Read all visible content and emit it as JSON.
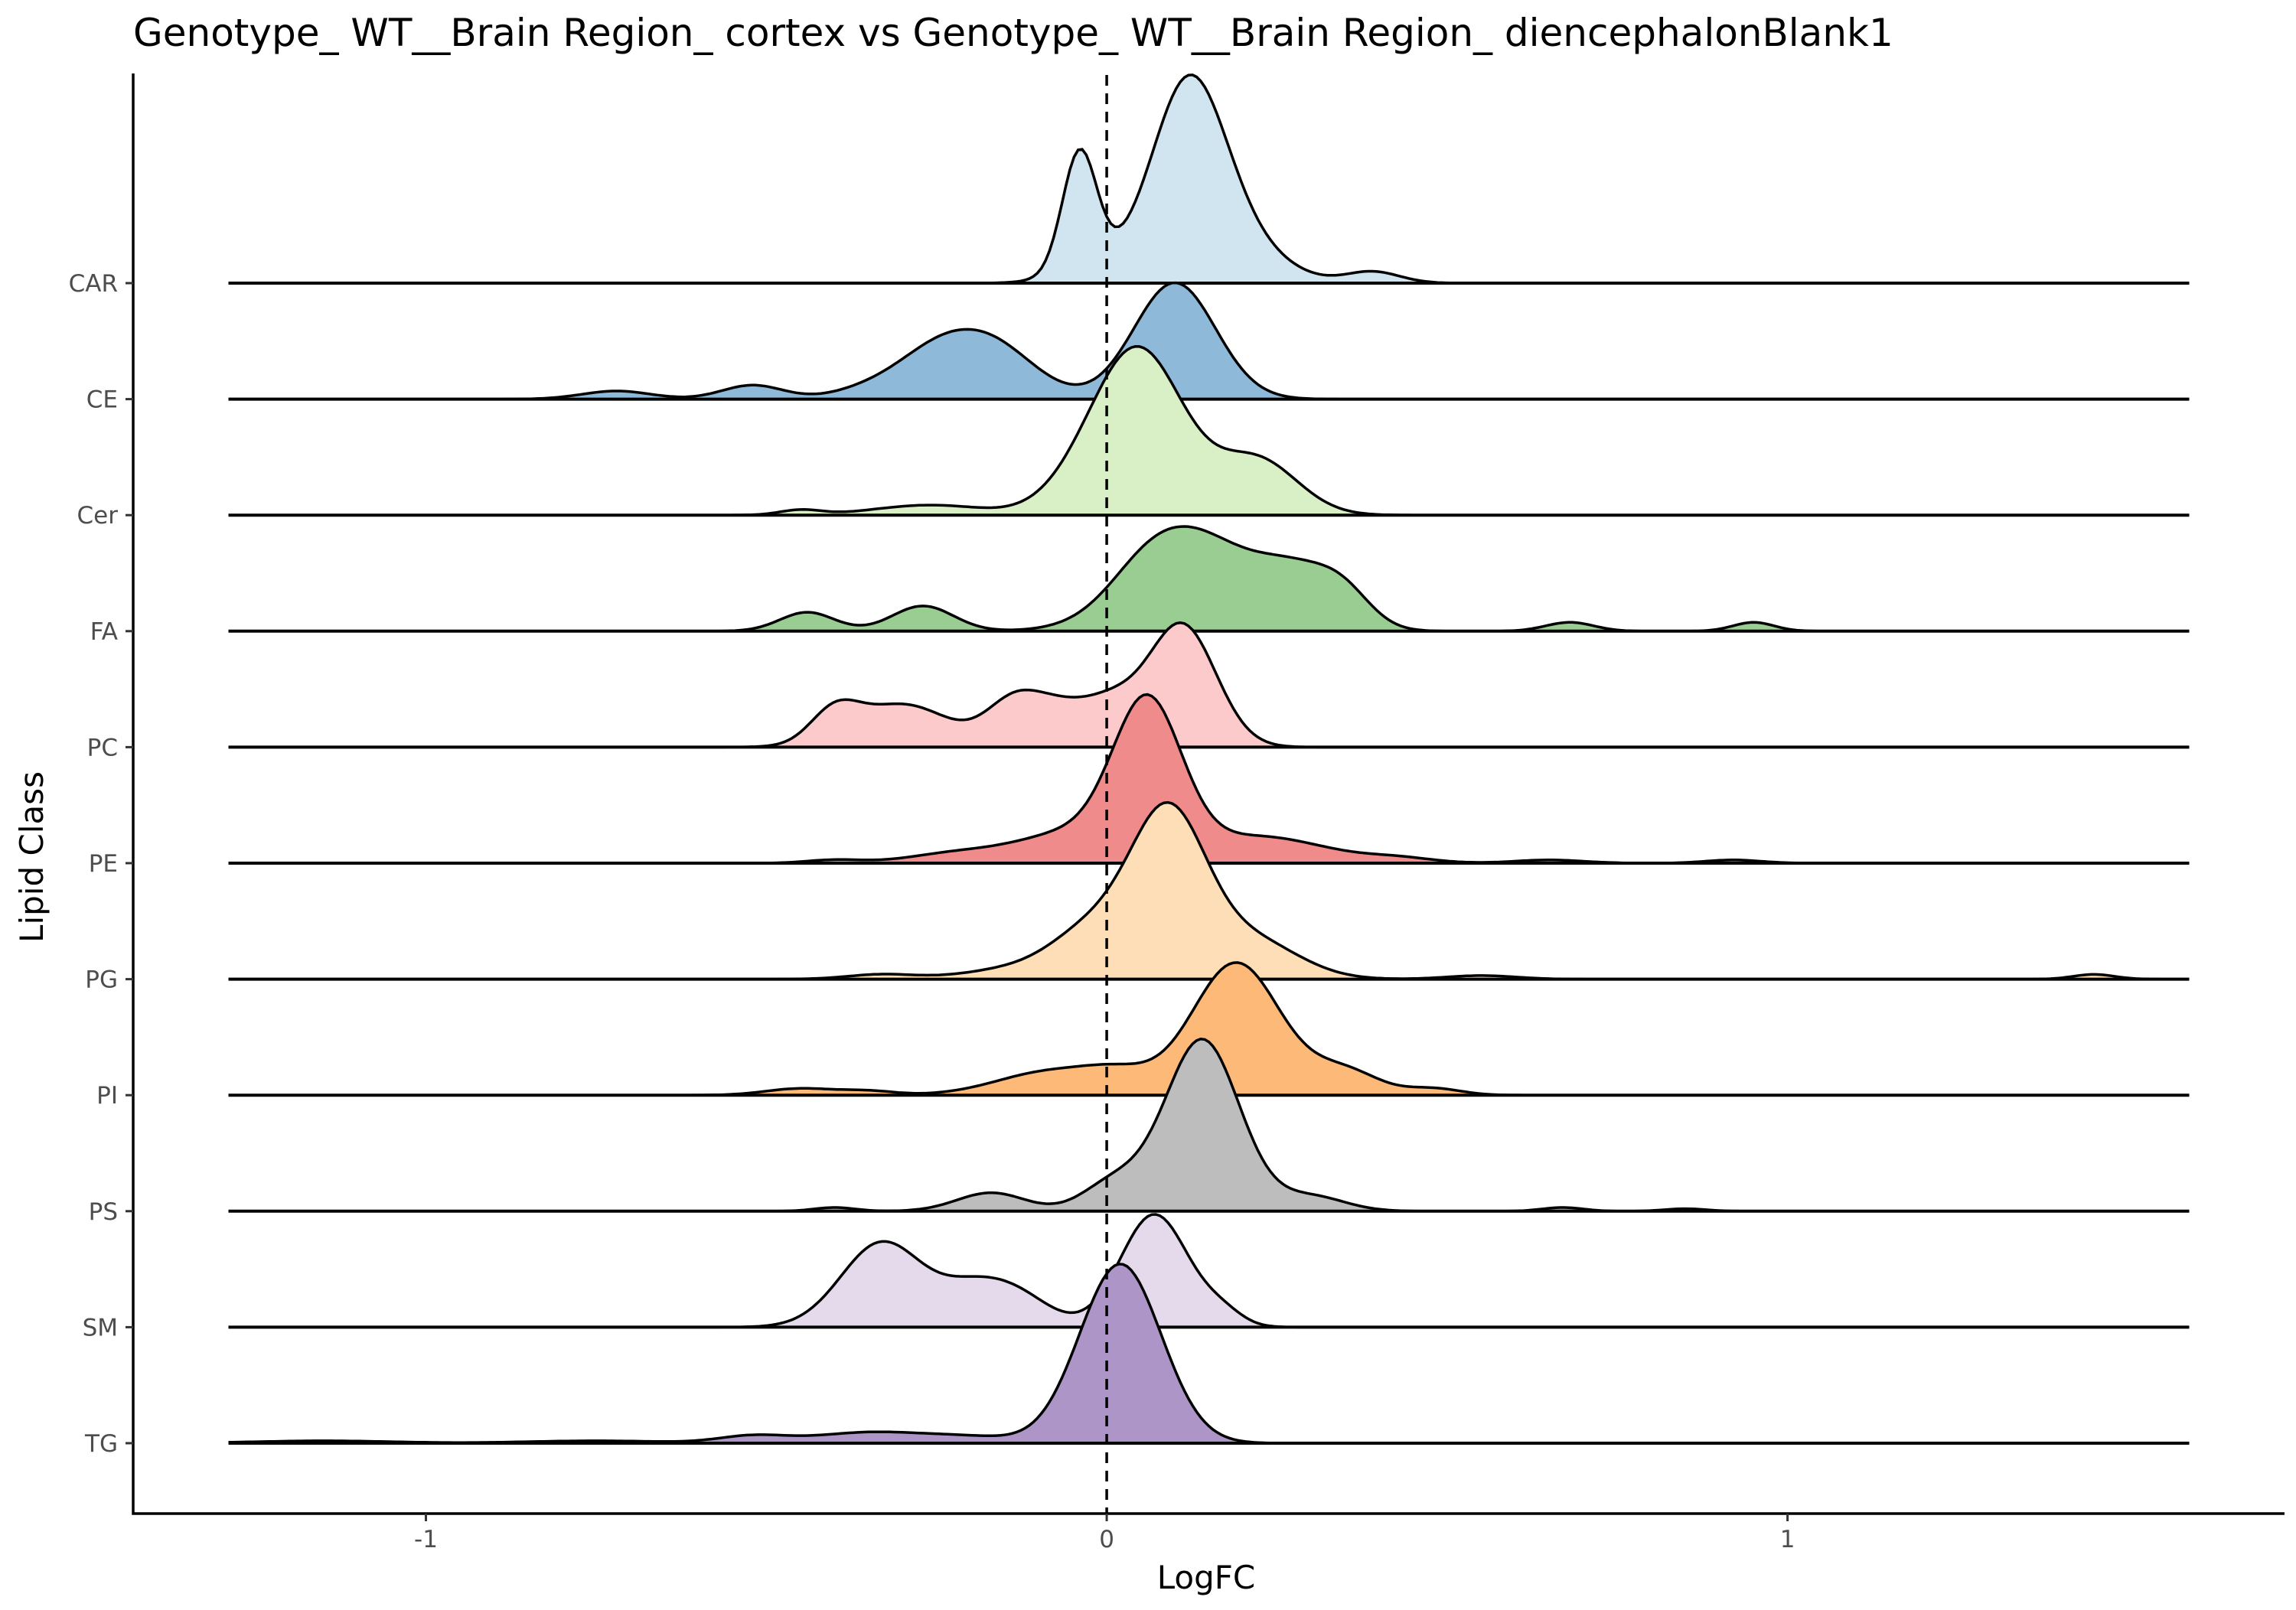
{
  "chart_data": {
    "type": "ridgeline",
    "title": "Genotype_ WT__Brain Region_ cortex vs Genotype_ WT__Brain Region_ diencephalonBlank1",
    "xlabel": "LogFC",
    "ylabel": "Lipid Class",
    "xlim": [
      -1.43,
      1.73
    ],
    "x_ticks": [
      -1,
      0,
      1
    ],
    "x_tick_labels": [
      "-1",
      "0",
      "1"
    ],
    "reference_line": {
      "x": 0,
      "style": "dashed"
    },
    "density_x_range": [
      -1.29,
      1.59
    ],
    "grid": false,
    "legend": "none",
    "series": [
      {
        "name": "CAR",
        "color": "#d1e5f0",
        "relative_height": 1.79,
        "peaks": [
          [
            -0.04,
            0.025,
            1.0
          ],
          [
            -0.02,
            0.05,
            0.15
          ],
          [
            0.12,
            0.055,
            1.72
          ],
          [
            0.21,
            0.06,
            0.25
          ],
          [
            0.39,
            0.04,
            0.1
          ]
        ]
      },
      {
        "name": "CE",
        "color": "#8fb9d9",
        "relative_height": 1.0,
        "peaks": [
          [
            -0.72,
            0.05,
            0.07
          ],
          [
            -0.52,
            0.045,
            0.12
          ],
          [
            -0.36,
            0.05,
            0.06
          ],
          [
            -0.26,
            0.06,
            0.32
          ],
          [
            -0.17,
            0.065,
            0.45
          ],
          [
            0.1,
            0.06,
            1.0
          ]
        ]
      },
      {
        "name": "Cer",
        "color": "#d9efc5",
        "relative_height": 1.45,
        "peaks": [
          [
            -0.45,
            0.03,
            0.04
          ],
          [
            -0.26,
            0.08,
            0.08
          ],
          [
            -0.03,
            0.06,
            0.2
          ],
          [
            0.05,
            0.065,
            1.25
          ],
          [
            0.22,
            0.06,
            0.44
          ]
        ]
      },
      {
        "name": "FA",
        "color": "#9acd91",
        "relative_height": 0.9,
        "peaks": [
          [
            -0.44,
            0.04,
            0.15
          ],
          [
            -0.27,
            0.045,
            0.2
          ],
          [
            0.05,
            0.05,
            0.1
          ],
          [
            0.12,
            0.085,
            0.78
          ],
          [
            0.28,
            0.06,
            0.4
          ],
          [
            0.35,
            0.04,
            0.2
          ],
          [
            0.68,
            0.035,
            0.07
          ],
          [
            0.95,
            0.03,
            0.07
          ]
        ]
      },
      {
        "name": "PC",
        "color": "#fccaca",
        "relative_height": 1.07,
        "peaks": [
          [
            -0.4,
            0.035,
            0.23
          ],
          [
            -0.3,
            0.07,
            0.33
          ],
          [
            -0.14,
            0.04,
            0.28
          ],
          [
            -0.07,
            0.05,
            0.3
          ],
          [
            0.01,
            0.04,
            0.25
          ],
          [
            0.11,
            0.05,
            0.95
          ]
        ]
      },
      {
        "name": "PE",
        "color": "#f08b8b",
        "relative_height": 1.45,
        "peaks": [
          [
            -0.4,
            0.04,
            0.03
          ],
          [
            -0.22,
            0.07,
            0.09
          ],
          [
            -0.05,
            0.08,
            0.28
          ],
          [
            0.06,
            0.05,
            1.4
          ],
          [
            0.22,
            0.1,
            0.25
          ],
          [
            0.43,
            0.05,
            0.04
          ],
          [
            0.65,
            0.05,
            0.03
          ],
          [
            0.92,
            0.04,
            0.03
          ]
        ]
      },
      {
        "name": "PG",
        "color": "#fddeb6",
        "relative_height": 1.52,
        "peaks": [
          [
            -0.33,
            0.05,
            0.04
          ],
          [
            -0.14,
            0.07,
            0.08
          ],
          [
            -0.02,
            0.06,
            0.4
          ],
          [
            0.09,
            0.055,
            1.33
          ],
          [
            0.21,
            0.07,
            0.33
          ],
          [
            0.55,
            0.05,
            0.03
          ],
          [
            1.45,
            0.03,
            0.04
          ]
        ]
      },
      {
        "name": "PI",
        "color": "#fdb977",
        "relative_height": 1.14,
        "peaks": [
          [
            -0.45,
            0.05,
            0.05
          ],
          [
            -0.35,
            0.04,
            0.03
          ],
          [
            -0.08,
            0.08,
            0.18
          ],
          [
            0.02,
            0.05,
            0.12
          ],
          [
            0.19,
            0.065,
            1.0
          ],
          [
            0.35,
            0.05,
            0.18
          ],
          [
            0.48,
            0.04,
            0.05
          ]
        ]
      },
      {
        "name": "PS",
        "color": "#bdbdbd",
        "relative_height": 1.48,
        "peaks": [
          [
            -0.4,
            0.03,
            0.03
          ],
          [
            -0.17,
            0.05,
            0.15
          ],
          [
            0.01,
            0.045,
            0.23
          ],
          [
            0.14,
            0.055,
            1.4
          ],
          [
            0.3,
            0.05,
            0.12
          ],
          [
            0.67,
            0.03,
            0.03
          ],
          [
            0.85,
            0.03,
            0.02
          ]
        ]
      },
      {
        "name": "SM",
        "color": "#e5d9ec",
        "relative_height": 0.97,
        "peaks": [
          [
            -0.33,
            0.06,
            0.66
          ],
          [
            -0.2,
            0.05,
            0.25
          ],
          [
            -0.13,
            0.05,
            0.22
          ],
          [
            0.07,
            0.05,
            0.88
          ],
          [
            0.17,
            0.03,
            0.1
          ]
        ]
      },
      {
        "name": "TG",
        "color": "#ad95c8",
        "relative_height": 1.54,
        "peaks": [
          [
            -1.15,
            0.1,
            0.02
          ],
          [
            -0.75,
            0.1,
            0.02
          ],
          [
            -0.52,
            0.05,
            0.06
          ],
          [
            -0.35,
            0.08,
            0.09
          ],
          [
            -0.2,
            0.07,
            0.05
          ],
          [
            0.02,
            0.06,
            1.52
          ]
        ]
      }
    ]
  }
}
